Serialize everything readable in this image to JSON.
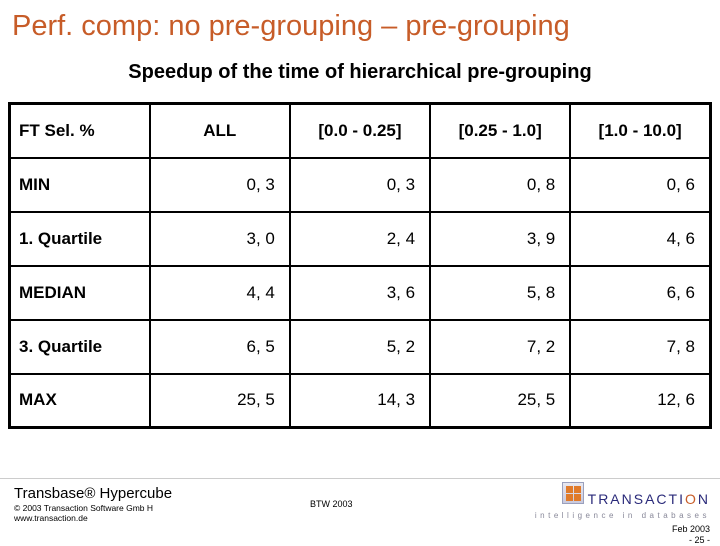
{
  "title": "Perf. comp: no pre-grouping – pre-grouping",
  "subtitle": "Speedup of the time of hierarchical pre-grouping",
  "table": {
    "columns": [
      "FT Sel. %",
      "ALL",
      "[0.0 - 0.25]",
      "[0.25 - 1.0]",
      "[1.0 - 10.0]"
    ],
    "rows": [
      {
        "label": "MIN",
        "values": [
          "0, 3",
          "0, 3",
          "0, 8",
          "0, 6"
        ]
      },
      {
        "label": "1. Quartile",
        "values": [
          "3, 0",
          "2, 4",
          "3, 9",
          "4, 6"
        ]
      },
      {
        "label": "MEDIAN",
        "values": [
          "4, 4",
          "3, 6",
          "5, 8",
          "6, 6"
        ]
      },
      {
        "label": "3. Quartile",
        "values": [
          "6, 5",
          "5, 2",
          "7, 2",
          "7, 8"
        ]
      },
      {
        "label": "MAX",
        "values": [
          "25, 5",
          "14, 3",
          "25, 5",
          "12, 6"
        ]
      }
    ]
  },
  "footer": {
    "product": "Transbase® Hypercube",
    "copyright_line1": "© 2003 Transaction Software Gmb H",
    "copyright_line2": "www.transaction.de",
    "center": "BTW 2003",
    "logo_main": "TRANSACTI",
    "logo_accent": "O",
    "logo_tail": "N",
    "tagline": "intelligence in databases",
    "date": "Feb 2003",
    "page": "- 25 -"
  }
}
